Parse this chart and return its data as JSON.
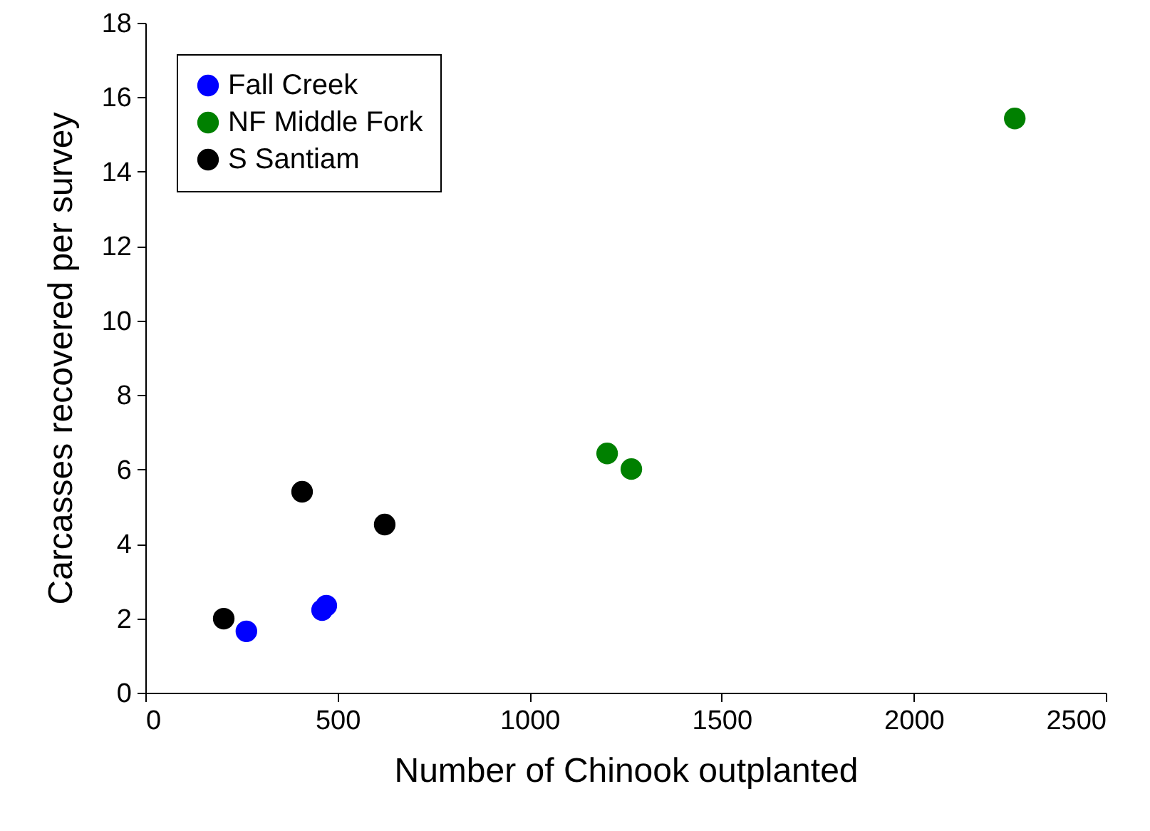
{
  "chart_data": {
    "type": "scatter",
    "xlabel": "Number of Chinook outplanted",
    "ylabel": "Carcasses recovered per survey",
    "xlim": [
      0,
      2500
    ],
    "xticks": [
      0,
      500,
      1000,
      1500,
      2000,
      2500
    ],
    "ylim": [
      0,
      18
    ],
    "yticks": [
      0,
      2,
      4,
      6,
      8,
      10,
      12,
      14,
      16,
      18
    ],
    "grid": false,
    "legend": "top left",
    "marker": "circle",
    "series": [
      {
        "name": "Fall Creek",
        "color": "#0000ff",
        "x": [
          263,
          460,
          471
        ],
        "values": [
          1.65,
          2.22,
          2.34
        ]
      },
      {
        "name": "NF Middle Fork",
        "color": "#008000",
        "x": [
          1202,
          1265,
          2263
        ],
        "values": [
          6.43,
          6.01,
          15.43
        ]
      },
      {
        "name": "S Santiam",
        "color": "#000000",
        "x": [
          204,
          408,
          623
        ],
        "values": [
          1.99,
          5.4,
          4.52
        ]
      }
    ]
  }
}
